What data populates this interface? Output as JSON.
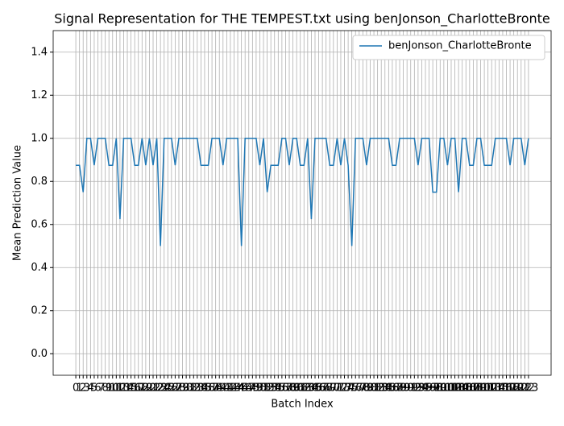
{
  "chart_data": {
    "type": "line",
    "title": "Signal Representation for THE TEMPEST.txt using benJonson_CharlotteBronte",
    "x_label": "Batch Index",
    "y_label": "Mean Prediction Value",
    "categories": [
      "0",
      "1",
      "2",
      "3",
      "4",
      "5",
      "6",
      "7",
      "8",
      "9",
      "10",
      "11",
      "12",
      "13",
      "14",
      "15",
      "16",
      "17",
      "18",
      "19",
      "20",
      "21",
      "22",
      "23",
      "24",
      "25",
      "26",
      "27",
      "28",
      "29",
      "30",
      "31",
      "32",
      "33",
      "34",
      "35",
      "36",
      "37",
      "38",
      "39",
      "40",
      "41",
      "42",
      "43",
      "44",
      "45",
      "46",
      "47",
      "48",
      "49",
      "50",
      "51",
      "52",
      "53",
      "54",
      "55",
      "56",
      "57",
      "58",
      "59",
      "60",
      "61",
      "62",
      "63",
      "64",
      "65",
      "66",
      "67",
      "68",
      "69",
      "70",
      "71",
      "72",
      "73",
      "74",
      "75",
      "76",
      "77",
      "78",
      "79",
      "80",
      "81",
      "82",
      "83",
      "84",
      "85",
      "86",
      "87",
      "88",
      "89",
      "90",
      "91",
      "92",
      "93",
      "94",
      "95",
      "96",
      "97",
      "98",
      "99",
      "100",
      "101",
      "102",
      "103",
      "104",
      "105",
      "106",
      "107",
      "108",
      "109",
      "110",
      "111",
      "112",
      "113",
      "114",
      "115",
      "116",
      "117",
      "118",
      "119",
      "120",
      "121",
      "122",
      "123"
    ],
    "series": [
      {
        "name": "benJonson_CharlotteBronte",
        "color": "#1f77b4",
        "values": [
          0.875,
          0.875,
          0.75,
          1,
          1,
          0.875,
          1,
          1,
          1,
          0.875,
          0.875,
          1,
          0.625,
          1,
          1,
          1,
          0.875,
          0.875,
          1,
          0.875,
          1,
          0.875,
          1,
          0.5,
          1,
          1,
          1,
          0.875,
          1,
          1,
          1,
          1,
          1,
          1,
          0.875,
          0.875,
          0.875,
          1,
          1,
          1,
          0.875,
          1,
          1,
          1,
          1,
          0.5,
          1,
          1,
          1,
          1,
          0.875,
          1,
          0.75,
          0.875,
          0.875,
          0.875,
          1,
          1,
          0.875,
          1,
          1,
          0.875,
          0.875,
          1,
          0.625,
          1,
          1,
          1,
          1,
          0.875,
          0.875,
          1,
          0.875,
          1,
          0.875,
          0.5,
          1,
          1,
          1,
          0.875,
          1,
          1,
          1,
          1,
          1,
          1,
          0.875,
          0.875,
          1,
          1,
          1,
          1,
          1,
          0.875,
          1,
          1,
          1,
          0.75,
          0.75,
          1,
          1,
          0.875,
          1,
          1,
          0.75,
          1,
          1,
          0.875,
          0.875,
          1,
          1,
          0.875,
          0.875,
          0.875,
          1,
          1,
          1,
          1,
          0.875,
          1,
          1,
          1,
          0.875,
          1
        ]
      }
    ],
    "ylim": [
      -0.1,
      1.5
    ],
    "yticks": [
      {
        "value": 0,
        "label": "0.0"
      },
      {
        "value": 0.2,
        "label": "0.2"
      },
      {
        "value": 0.4,
        "label": "0.4"
      },
      {
        "value": 0.6,
        "label": "0.6"
      },
      {
        "value": 0.8,
        "label": "0.8"
      },
      {
        "value": 1,
        "label": "1.0"
      },
      {
        "value": 1.2,
        "label": "1.2"
      },
      {
        "value": 1.4,
        "label": "1.4"
      }
    ],
    "grid": true,
    "legend": "upper right"
  }
}
